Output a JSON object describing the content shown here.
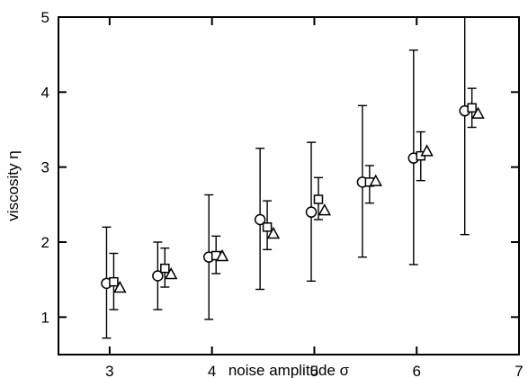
{
  "chart_data": {
    "type": "scatter",
    "title": "",
    "xlabel": "noise amplitude σ",
    "ylabel": "viscosity η",
    "xlim": [
      2.5,
      7
    ],
    "ylim": [
      0.5,
      5
    ],
    "xticks": [
      3,
      4,
      5,
      6,
      7
    ],
    "yticks": [
      1,
      2,
      3,
      4,
      5
    ],
    "grid": false,
    "series": [
      {
        "marker": "circle",
        "points": [
          {
            "x": 2.97,
            "y": 1.45,
            "lo": 0.72,
            "hi": 2.2
          },
          {
            "x": 3.47,
            "y": 1.55,
            "lo": 1.1,
            "hi": 2.0
          },
          {
            "x": 3.97,
            "y": 1.8,
            "lo": 0.97,
            "hi": 2.63
          },
          {
            "x": 4.47,
            "y": 2.3,
            "lo": 1.37,
            "hi": 3.25
          },
          {
            "x": 4.97,
            "y": 2.4,
            "lo": 1.48,
            "hi": 3.33
          },
          {
            "x": 5.47,
            "y": 2.8,
            "lo": 1.8,
            "hi": 3.82
          },
          {
            "x": 5.97,
            "y": 3.12,
            "lo": 1.7,
            "hi": 4.56
          },
          {
            "x": 6.47,
            "y": 3.75,
            "lo": 2.1,
            "hi": 5.0
          }
        ]
      },
      {
        "marker": "square",
        "points": [
          {
            "x": 3.04,
            "y": 1.47,
            "lo": 1.1,
            "hi": 1.85
          },
          {
            "x": 3.54,
            "y": 1.65,
            "lo": 1.4,
            "hi": 1.92
          },
          {
            "x": 4.04,
            "y": 1.82,
            "lo": 1.58,
            "hi": 2.08
          },
          {
            "x": 4.54,
            "y": 2.2,
            "lo": 1.9,
            "hi": 2.55
          },
          {
            "x": 5.04,
            "y": 2.57,
            "lo": 2.3,
            "hi": 2.86
          },
          {
            "x": 5.54,
            "y": 2.8,
            "lo": 2.52,
            "hi": 3.02
          },
          {
            "x": 6.04,
            "y": 3.15,
            "lo": 2.82,
            "hi": 3.47
          },
          {
            "x": 6.54,
            "y": 3.79,
            "lo": 3.53,
            "hi": 4.05
          }
        ]
      },
      {
        "marker": "triangle",
        "points": [
          {
            "x": 3.1,
            "y": 1.4
          },
          {
            "x": 3.6,
            "y": 1.58
          },
          {
            "x": 4.1,
            "y": 1.82
          },
          {
            "x": 4.6,
            "y": 2.12
          },
          {
            "x": 5.1,
            "y": 2.43
          },
          {
            "x": 5.6,
            "y": 2.82
          },
          {
            "x": 6.1,
            "y": 3.22
          },
          {
            "x": 6.6,
            "y": 3.72
          }
        ]
      }
    ]
  }
}
